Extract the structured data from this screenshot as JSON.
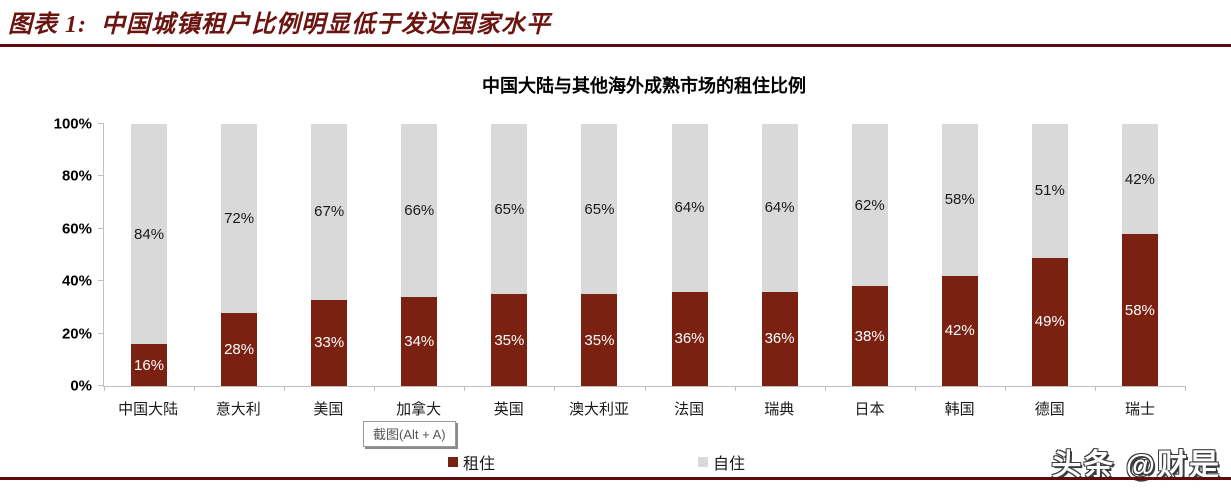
{
  "page": {
    "header_title": "图表 1:  中国城镇租户比例明显低于发达国家水平",
    "tooltip": "截图(Alt + A)",
    "watermark": "头条 @财是",
    "accent_color": "#7b2112",
    "rule_color": "#5e0b0e"
  },
  "chart_data": {
    "type": "bar",
    "stacked": true,
    "percent_stacked": true,
    "title": "中国大陆与其他海外成熟市场的租住比例",
    "categories": [
      "中国大陆",
      "意大利",
      "美国",
      "加拿大",
      "英国",
      "澳大利亚",
      "法国",
      "瑞典",
      "日本",
      "韩国",
      "德国",
      "瑞士"
    ],
    "series": [
      {
        "name": "租住",
        "color": "#7b2112",
        "label_color": "#ffffff",
        "values": [
          16,
          28,
          33,
          34,
          35,
          35,
          36,
          36,
          38,
          42,
          49,
          58
        ],
        "labels": [
          "16%",
          "28%",
          "33%",
          "34%",
          "35%",
          "35%",
          "36%",
          "36%",
          "38%",
          "42%",
          "49%",
          "58%"
        ]
      },
      {
        "name": "自住",
        "color": "#d9d9d9",
        "label_color": "#1a1a1a",
        "values": [
          84,
          72,
          67,
          66,
          65,
          65,
          64,
          64,
          62,
          58,
          51,
          42
        ],
        "labels": [
          "84%",
          "72%",
          "67%",
          "66%",
          "65%",
          "65%",
          "64%",
          "64%",
          "62%",
          "58%",
          "51%",
          "42%"
        ]
      }
    ],
    "ylim": [
      0,
      100
    ],
    "yticks": [
      "0%",
      "20%",
      "40%",
      "60%",
      "80%",
      "100%"
    ],
    "grid": false,
    "legend_position": "bottom"
  }
}
